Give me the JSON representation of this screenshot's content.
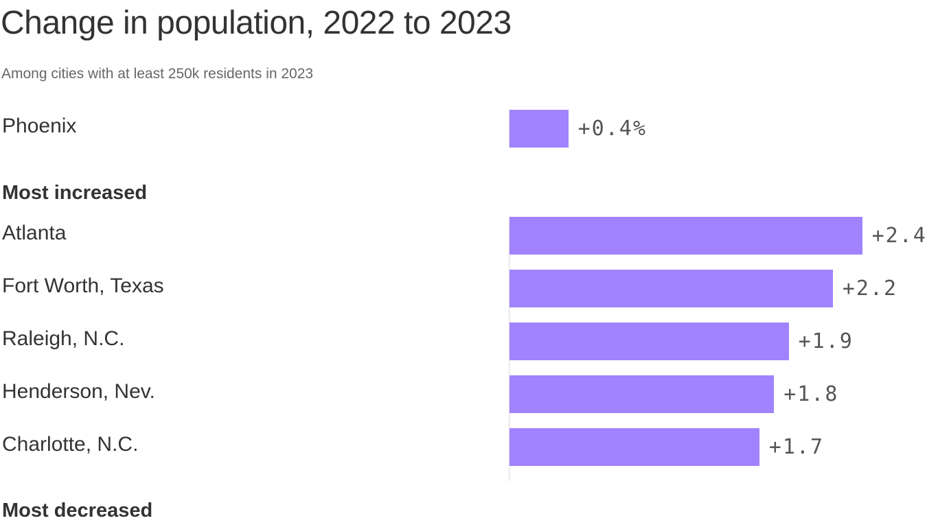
{
  "chart_data": {
    "type": "bar",
    "orientation": "horizontal",
    "title": "Change in population, 2022 to 2023",
    "subtitle": "Among cities with at least 250k residents in 2023",
    "bar_color": "#a182ff",
    "featured": {
      "category": "Phoenix",
      "value": 0.4,
      "label": "+0.4%"
    },
    "groups": [
      {
        "name": "Most increased",
        "categories": [
          "Atlanta",
          "Fort Worth, Texas",
          "Raleigh, N.C.",
          "Henderson, Nev.",
          "Charlotte, N.C."
        ],
        "values": [
          2.4,
          2.2,
          1.9,
          1.8,
          1.7
        ],
        "labels": [
          "+2.4",
          "+2.2",
          "+1.9",
          "+1.8",
          "+1.7"
        ]
      },
      {
        "name": "Most decreased",
        "categories": [],
        "values": [],
        "labels": []
      }
    ]
  }
}
